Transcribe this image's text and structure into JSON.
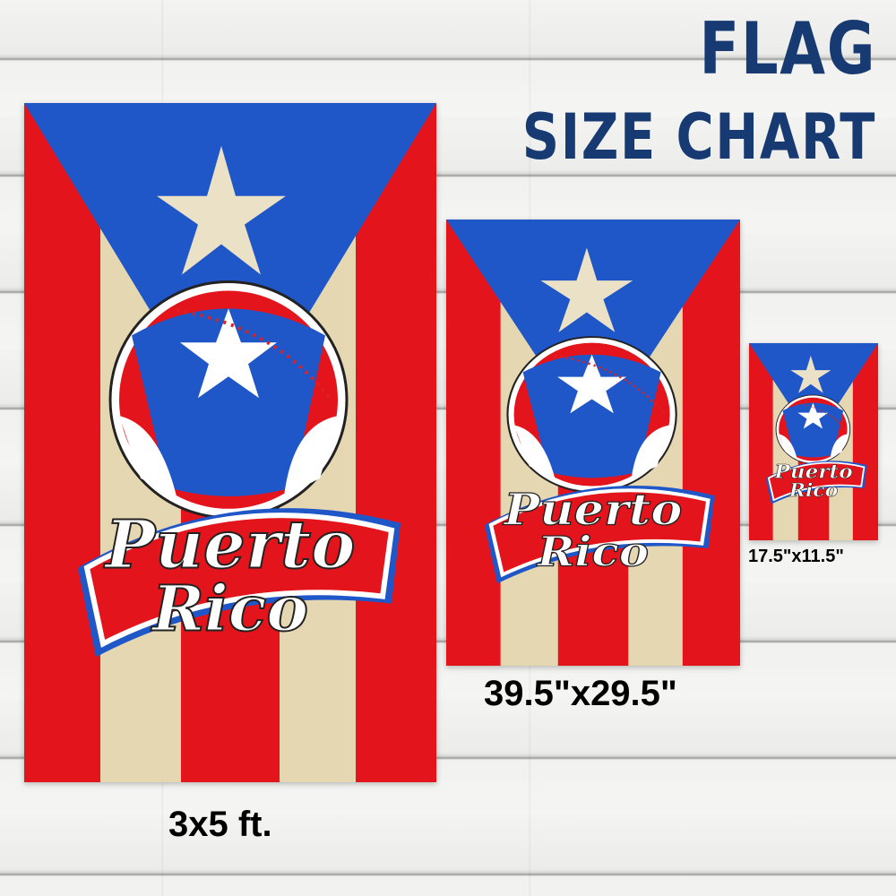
{
  "header": {
    "line1": "FLAG",
    "line2": "SIZE CHART"
  },
  "flag_artwork": {
    "word1": "Puerto",
    "word2": "Rico",
    "icon": "baseball-icon"
  },
  "sizes": [
    {
      "label": "3x5 ft."
    },
    {
      "label": "39.5\"x29.5\""
    },
    {
      "label": "17.5\"x11.5\""
    }
  ],
  "colors": {
    "title": "#173a72",
    "red": "#e3141b",
    "blue": "#1f56c8",
    "cream": "#e9dcbc"
  }
}
